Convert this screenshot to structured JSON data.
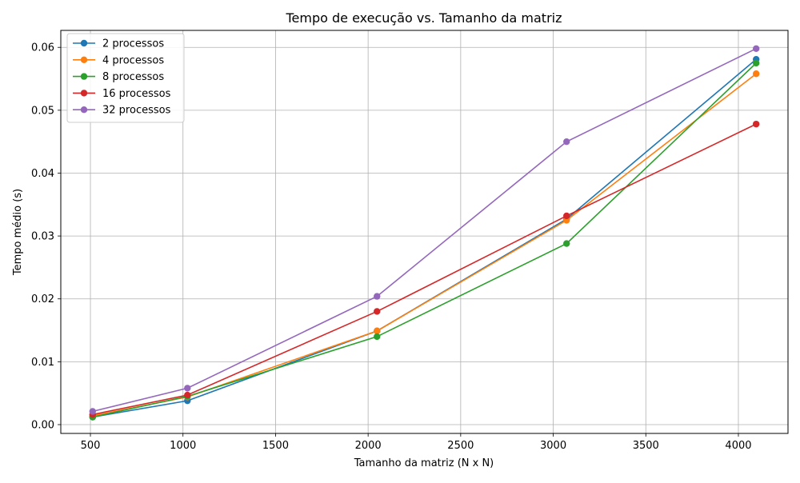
{
  "chart_data": {
    "type": "line",
    "title": "Tempo de execução vs. Tamanho da matriz",
    "xlabel": "Tamanho da matriz (N x N)",
    "ylabel": "Tempo médio (s)",
    "x": [
      512,
      1024,
      2048,
      3072,
      4096
    ],
    "xlim": [
      340,
      4268
    ],
    "ylim": [
      -0.0014,
      0.0627
    ],
    "xticks": [
      500,
      1000,
      1500,
      2000,
      2500,
      3000,
      3500,
      4000
    ],
    "yticks": [
      0.0,
      0.01,
      0.02,
      0.03,
      0.04,
      0.05,
      0.06
    ],
    "xtick_labels": [
      "500",
      "1000",
      "1500",
      "2000",
      "2500",
      "3000",
      "3500",
      "4000"
    ],
    "ytick_labels": [
      "0.00",
      "0.01",
      "0.02",
      "0.03",
      "0.04",
      "0.05",
      "0.06"
    ],
    "grid": true,
    "legend_position": "upper-left",
    "markers": "circle",
    "series": [
      {
        "name": "2 processos",
        "color": "#1f77b4",
        "values": [
          0.0012,
          0.0038,
          0.0149,
          0.0327,
          0.0581
        ]
      },
      {
        "name": "4 processos",
        "color": "#ff7f0e",
        "values": [
          0.0014,
          0.0044,
          0.0149,
          0.0325,
          0.0558
        ]
      },
      {
        "name": "8 processos",
        "color": "#2ca02c",
        "values": [
          0.0012,
          0.0045,
          0.014,
          0.0288,
          0.0575
        ]
      },
      {
        "name": "16 processos",
        "color": "#d62728",
        "values": [
          0.0016,
          0.0047,
          0.018,
          0.0332,
          0.0478
        ]
      },
      {
        "name": "32 processos",
        "color": "#9467bd",
        "values": [
          0.0021,
          0.0058,
          0.0204,
          0.045,
          0.0598
        ]
      }
    ]
  }
}
